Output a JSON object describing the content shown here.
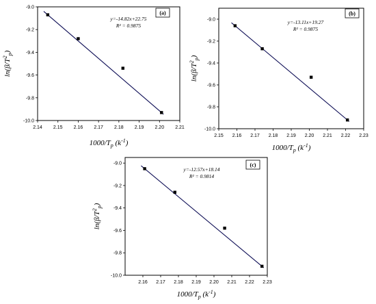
{
  "chart_data": [
    {
      "type": "scatter",
      "panel_label": "(a)",
      "equation": "y=-14.82x+22.75",
      "r2": "R² = 0.9875",
      "xlabel": "1000/Tp (k-1)",
      "ylabel": "ln(β/T²p)",
      "xlim": [
        2.14,
        2.21
      ],
      "ylim": [
        -10.0,
        -9.0
      ],
      "xticks": [
        "2.14",
        "2.15",
        "2.16",
        "2.17",
        "2.18",
        "2.19",
        "2.20",
        "2.21"
      ],
      "yticks": [
        "-9.0",
        "-9.2",
        "-9.4",
        "-9.6",
        "-9.8",
        "-10.0"
      ],
      "points": [
        {
          "x": 2.145,
          "y": -9.07
        },
        {
          "x": 2.16,
          "y": -9.28
        },
        {
          "x": 2.182,
          "y": -9.54
        },
        {
          "x": 2.201,
          "y": -9.93
        }
      ],
      "fit": {
        "slope": -14.82,
        "intercept": 22.75
      },
      "legend": "top-right"
    },
    {
      "type": "scatter",
      "panel_label": "(b)",
      "equation": "y=-13.11x+19.27",
      "r2": "R² = 0.9875",
      "xlabel": "1000/Tp (k-1)",
      "ylabel": "ln(β/T²p)",
      "xlim": [
        2.15,
        2.23
      ],
      "ylim": [
        -10.0,
        -8.9
      ],
      "xticks": [
        "2.15",
        "2.16",
        "2.17",
        "2.18",
        "2.19",
        "2.20",
        "2.21",
        "2.22",
        "2.23"
      ],
      "yticks": [
        "-9.0",
        "-9.2",
        "-9.4",
        "-9.6",
        "-9.8",
        "-10.0"
      ],
      "points": [
        {
          "x": 2.159,
          "y": -9.06
        },
        {
          "x": 2.174,
          "y": -9.27
        },
        {
          "x": 2.201,
          "y": -9.53
        },
        {
          "x": 2.221,
          "y": -9.92
        }
      ],
      "fit": {
        "slope": -13.11,
        "intercept": 19.27
      },
      "legend": "top-right"
    },
    {
      "type": "scatter",
      "panel_label": "(c)",
      "equation": "y=-12.57x+18.14",
      "r2": "R² = 0.9814",
      "xlabel": "1000/Tp (k-1)",
      "ylabel": "ln(β/T²p)",
      "xlim": [
        2.15,
        2.23
      ],
      "ylim": [
        -10.0,
        -8.95
      ],
      "xticks": [
        "2.16",
        "2.17",
        "2.18",
        "2.19",
        "2.20",
        "2.21",
        "2.22",
        "2.23"
      ],
      "yticks": [
        "-9.0",
        "-9.2",
        "-9.4",
        "-9.6",
        "-9.8",
        "-10.0"
      ],
      "points": [
        {
          "x": 2.161,
          "y": -9.05
        },
        {
          "x": 2.178,
          "y": -9.26
        },
        {
          "x": 2.206,
          "y": -9.58
        },
        {
          "x": 2.227,
          "y": -9.92
        }
      ],
      "fit": {
        "slope": -12.57,
        "intercept": 18.14
      },
      "legend": "top-right"
    }
  ]
}
